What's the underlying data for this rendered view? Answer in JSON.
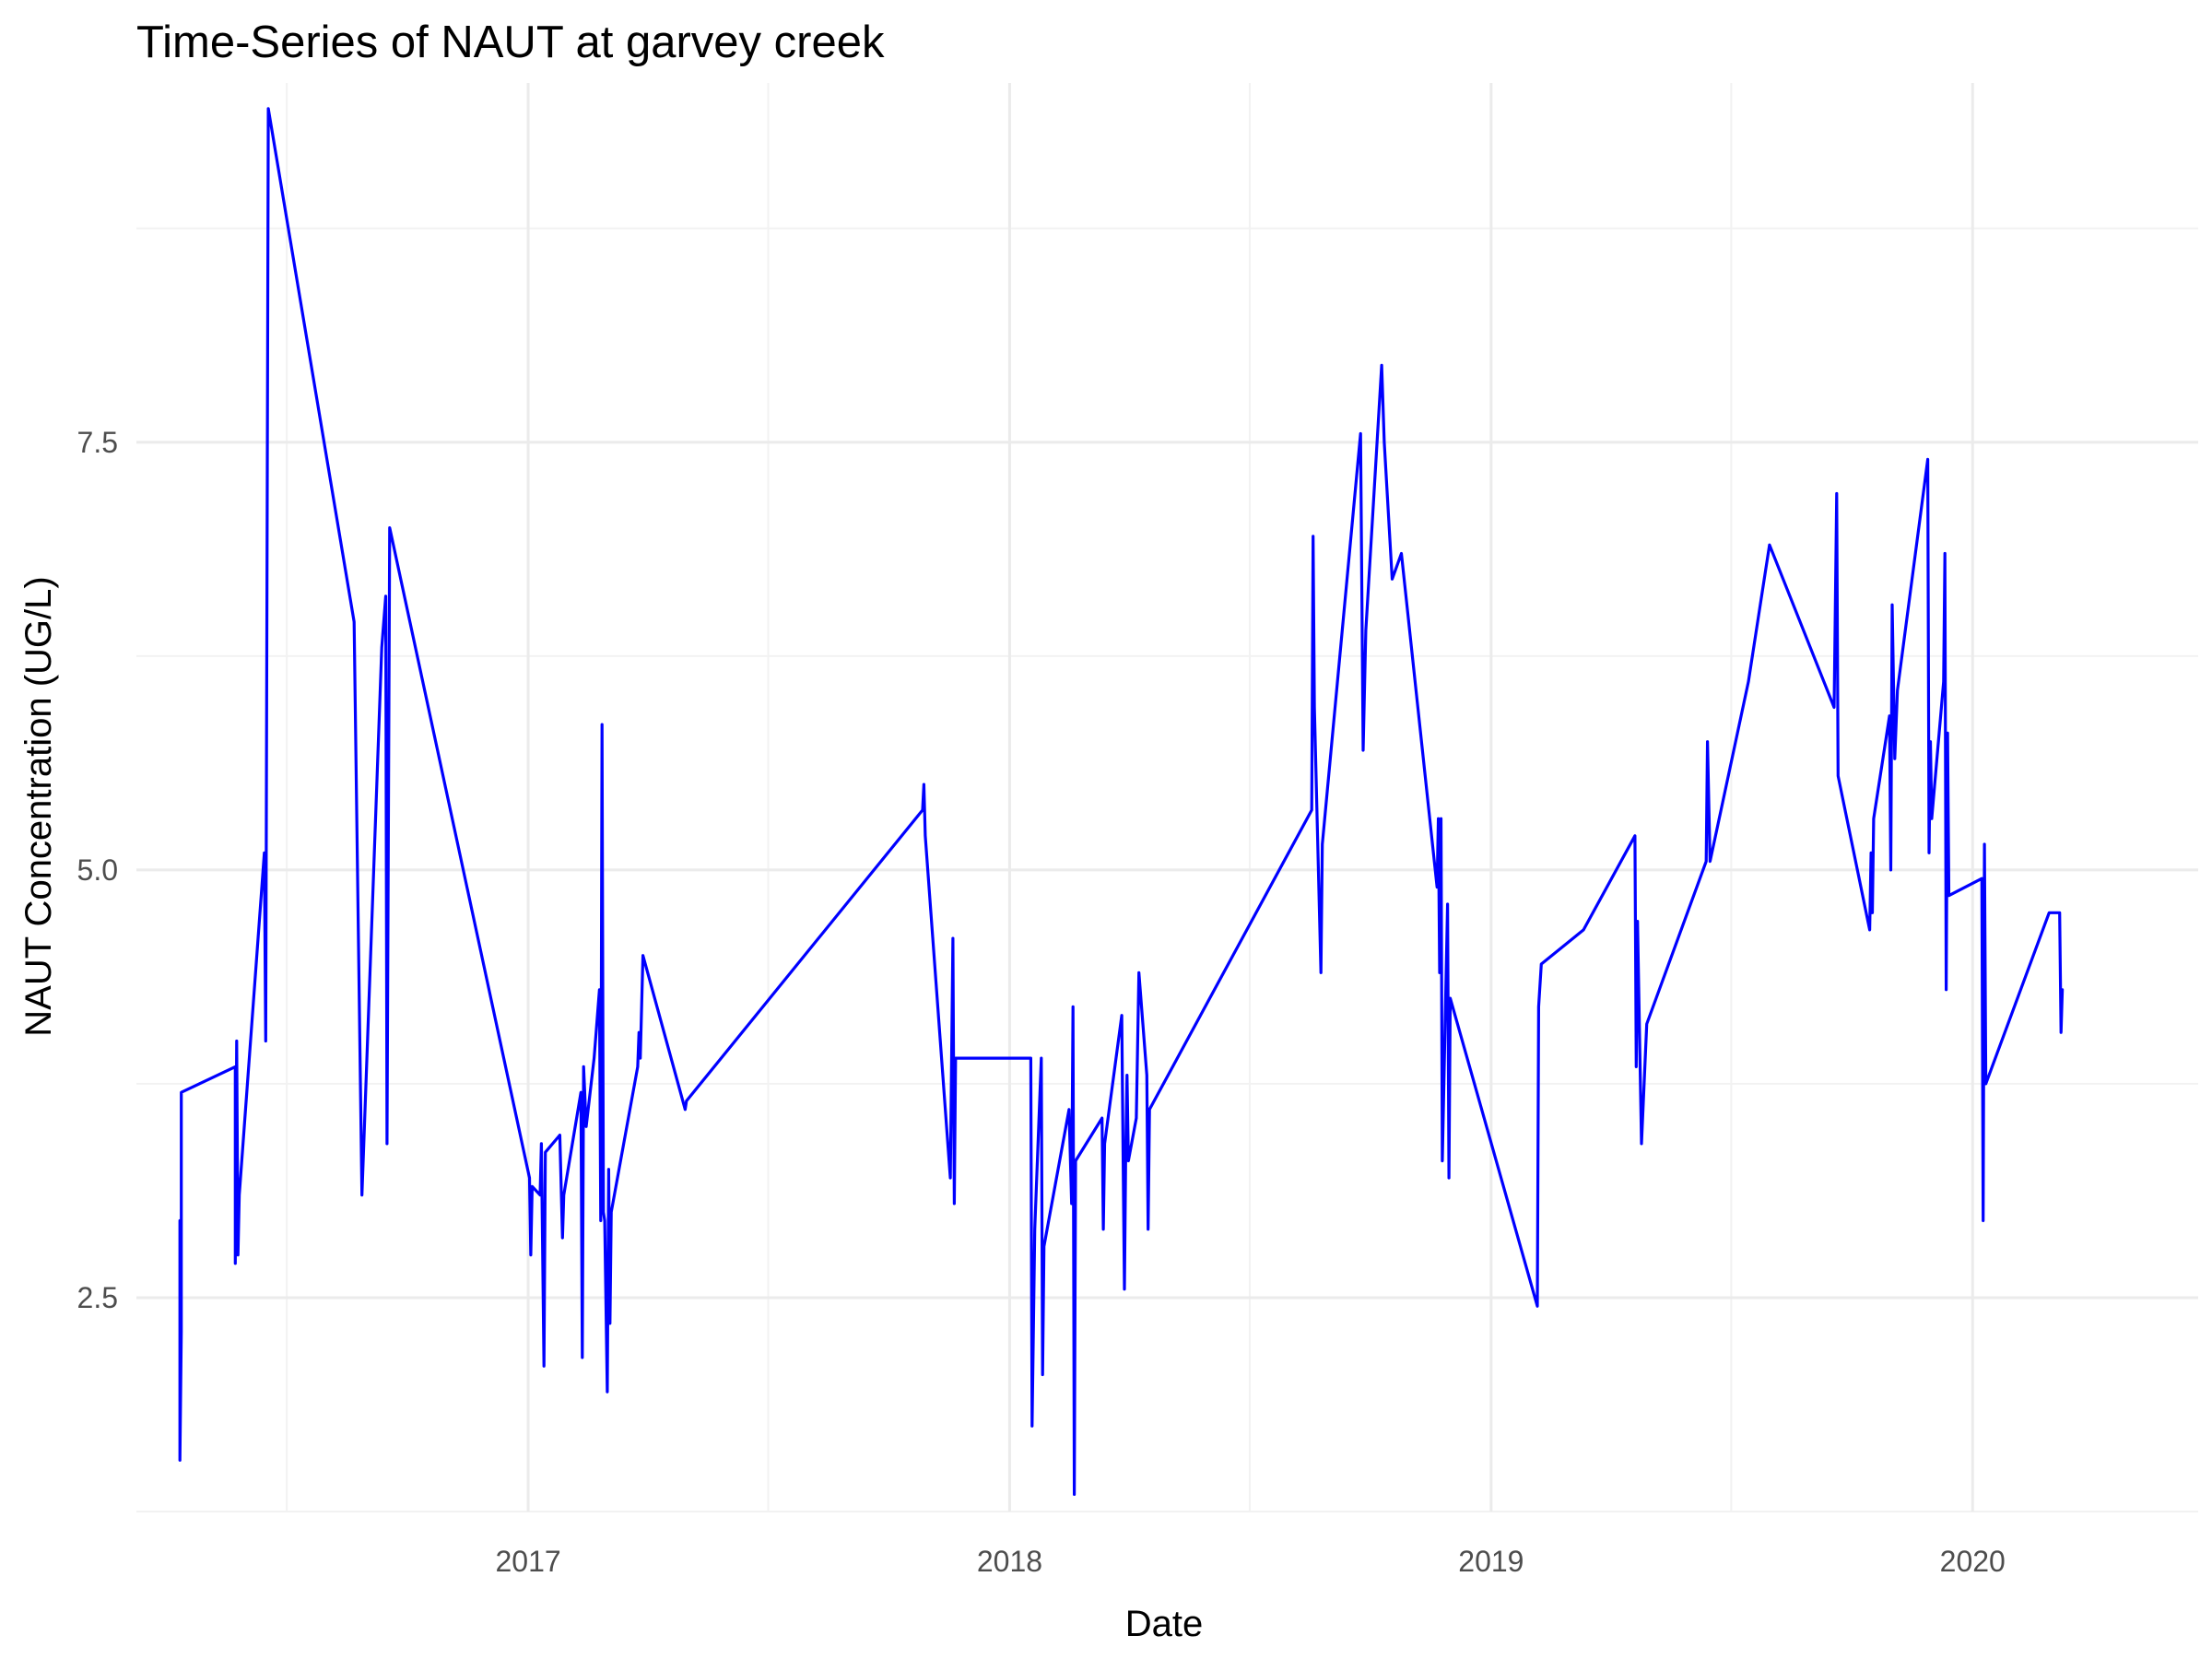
{
  "chart_data": {
    "type": "line",
    "title": "Time-Series of NAUT at garvey creek",
    "xlabel": "Date",
    "ylabel": "NAUT Concentration (UG/L)",
    "x_ticks": [
      "2017",
      "2018",
      "2019",
      "2020"
    ],
    "y_ticks": [
      "2.5",
      "5.0",
      "7.5"
    ],
    "xlim": [
      "2016-03-10",
      "2020-06-20"
    ],
    "ylim": [
      1.25,
      9.6
    ],
    "grid": true,
    "legend": "none",
    "line_color": "#0000ff",
    "series": [
      {
        "points": [
          [
            "2016-04-12",
            2.95
          ],
          [
            "2016-04-12",
            1.55
          ],
          [
            "2016-04-13",
            2.3
          ],
          [
            "2016-04-13",
            3.7
          ],
          [
            "2016-05-24",
            3.85
          ],
          [
            "2016-05-24",
            2.7
          ],
          [
            "2016-05-25",
            4.0
          ],
          [
            "2016-05-26",
            2.75
          ],
          [
            "2016-05-27",
            3.1
          ],
          [
            "2016-06-15",
            5.1
          ],
          [
            "2016-06-16",
            4.0
          ],
          [
            "2016-06-18",
            9.45
          ],
          [
            "2016-08-22",
            6.45
          ],
          [
            "2016-08-28",
            3.1
          ],
          [
            "2016-09-12",
            6.3
          ],
          [
            "2016-09-15",
            6.6
          ],
          [
            "2016-09-16",
            3.4
          ],
          [
            "2016-09-18",
            7.0
          ],
          [
            "2017-01-02",
            3.2
          ],
          [
            "2017-01-03",
            2.75
          ],
          [
            "2017-01-04",
            3.15
          ],
          [
            "2017-01-10",
            3.1
          ],
          [
            "2017-01-11",
            3.4
          ],
          [
            "2017-01-13",
            2.1
          ],
          [
            "2017-01-14",
            3.35
          ],
          [
            "2017-01-25",
            3.45
          ],
          [
            "2017-01-27",
            2.85
          ],
          [
            "2017-01-28",
            3.1
          ],
          [
            "2017-02-10",
            3.7
          ],
          [
            "2017-02-11",
            2.15
          ],
          [
            "2017-02-12",
            3.85
          ],
          [
            "2017-02-14",
            3.5
          ],
          [
            "2017-02-20",
            3.9
          ],
          [
            "2017-02-24",
            4.3
          ],
          [
            "2017-02-25",
            2.95
          ],
          [
            "2017-02-26",
            5.85
          ],
          [
            "2017-02-27",
            3.0
          ],
          [
            "2017-02-28",
            2.95
          ],
          [
            "2017-03-02",
            1.95
          ],
          [
            "2017-03-03",
            3.25
          ],
          [
            "2017-03-04",
            2.35
          ],
          [
            "2017-03-05",
            3.0
          ],
          [
            "2017-03-25",
            3.85
          ],
          [
            "2017-03-26",
            4.05
          ],
          [
            "2017-03-27",
            3.9
          ],
          [
            "2017-03-29",
            4.5
          ],
          [
            "2017-04-30",
            3.6
          ],
          [
            "2017-05-01",
            3.65
          ],
          [
            "2017-10-27",
            5.35
          ],
          [
            "2017-10-28",
            5.5
          ],
          [
            "2017-10-29",
            5.2
          ],
          [
            "2017-11-17",
            3.2
          ],
          [
            "2017-11-19",
            4.6
          ],
          [
            "2017-11-20",
            3.05
          ],
          [
            "2017-11-21",
            3.9
          ],
          [
            "2018-01-17",
            3.9
          ],
          [
            "2018-01-18",
            1.75
          ],
          [
            "2018-01-20",
            2.9
          ],
          [
            "2018-01-25",
            3.9
          ],
          [
            "2018-01-26",
            2.05
          ],
          [
            "2018-01-27",
            2.8
          ],
          [
            "2018-02-15",
            3.6
          ],
          [
            "2018-02-17",
            3.05
          ],
          [
            "2018-02-18",
            4.2
          ],
          [
            "2018-02-19",
            1.35
          ],
          [
            "2018-02-20",
            3.3
          ],
          [
            "2018-03-12",
            3.55
          ],
          [
            "2018-03-13",
            2.9
          ],
          [
            "2018-03-14",
            3.4
          ],
          [
            "2018-03-27",
            4.15
          ],
          [
            "2018-03-28",
            3.3
          ],
          [
            "2018-03-29",
            2.55
          ],
          [
            "2018-03-30",
            3.35
          ],
          [
            "2018-03-31",
            3.8
          ],
          [
            "2018-04-01",
            3.3
          ],
          [
            "2018-04-07",
            3.55
          ],
          [
            "2018-04-09",
            4.4
          ],
          [
            "2018-04-15",
            3.8
          ],
          [
            "2018-04-16",
            2.9
          ],
          [
            "2018-04-17",
            3.6
          ],
          [
            "2018-08-18",
            5.35
          ],
          [
            "2018-08-19",
            6.95
          ],
          [
            "2018-08-20",
            5.95
          ],
          [
            "2018-08-25",
            4.4
          ],
          [
            "2018-08-26",
            5.15
          ],
          [
            "2018-09-24",
            7.55
          ],
          [
            "2018-09-26",
            5.7
          ],
          [
            "2018-09-28",
            6.4
          ],
          [
            "2018-10-10",
            7.95
          ],
          [
            "2018-10-12",
            7.5
          ],
          [
            "2018-10-18",
            6.7
          ],
          [
            "2018-10-25",
            6.85
          ],
          [
            "2018-11-21",
            4.9
          ],
          [
            "2018-11-22",
            5.3
          ],
          [
            "2018-11-23",
            4.4
          ],
          [
            "2018-11-24",
            5.3
          ],
          [
            "2018-11-25",
            3.3
          ],
          [
            "2018-11-29",
            4.8
          ],
          [
            "2018-11-30",
            3.2
          ],
          [
            "2018-12-01",
            4.25
          ],
          [
            "2019-02-05",
            2.45
          ],
          [
            "2019-02-06",
            4.2
          ],
          [
            "2019-02-08",
            4.45
          ],
          [
            "2019-03-12",
            4.65
          ],
          [
            "2019-04-20",
            5.2
          ],
          [
            "2019-04-21",
            3.85
          ],
          [
            "2019-04-22",
            4.7
          ],
          [
            "2019-04-25",
            3.4
          ],
          [
            "2019-04-29",
            4.1
          ],
          [
            "2019-06-13",
            5.05
          ],
          [
            "2019-06-14",
            5.75
          ],
          [
            "2019-06-16",
            5.05
          ],
          [
            "2019-07-15",
            6.1
          ],
          [
            "2019-07-31",
            6.9
          ],
          [
            "2019-09-18",
            5.95
          ],
          [
            "2019-09-20",
            7.2
          ],
          [
            "2019-09-21",
            5.55
          ],
          [
            "2019-10-15",
            4.65
          ],
          [
            "2019-10-16",
            5.1
          ],
          [
            "2019-10-17",
            4.75
          ],
          [
            "2019-10-18",
            5.3
          ],
          [
            "2019-10-30",
            5.9
          ],
          [
            "2019-10-31",
            5.0
          ],
          [
            "2019-11-01",
            6.55
          ],
          [
            "2019-11-03",
            5.65
          ],
          [
            "2019-11-05",
            6.05
          ],
          [
            "2019-11-28",
            7.4
          ],
          [
            "2019-11-29",
            5.1
          ],
          [
            "2019-11-30",
            5.75
          ],
          [
            "2019-12-01",
            5.3
          ],
          [
            "2019-12-10",
            6.1
          ],
          [
            "2019-12-11",
            6.85
          ],
          [
            "2019-12-12",
            4.3
          ],
          [
            "2019-12-13",
            5.8
          ],
          [
            "2019-12-14",
            4.85
          ],
          [
            "2020-01-08",
            4.95
          ],
          [
            "2020-01-09",
            2.95
          ],
          [
            "2020-01-10",
            5.15
          ],
          [
            "2020-01-11",
            3.75
          ],
          [
            "2020-02-28",
            4.75
          ],
          [
            "2020-03-07",
            4.75
          ],
          [
            "2020-03-08",
            4.05
          ],
          [
            "2020-03-09",
            4.3
          ]
        ]
      }
    ]
  }
}
